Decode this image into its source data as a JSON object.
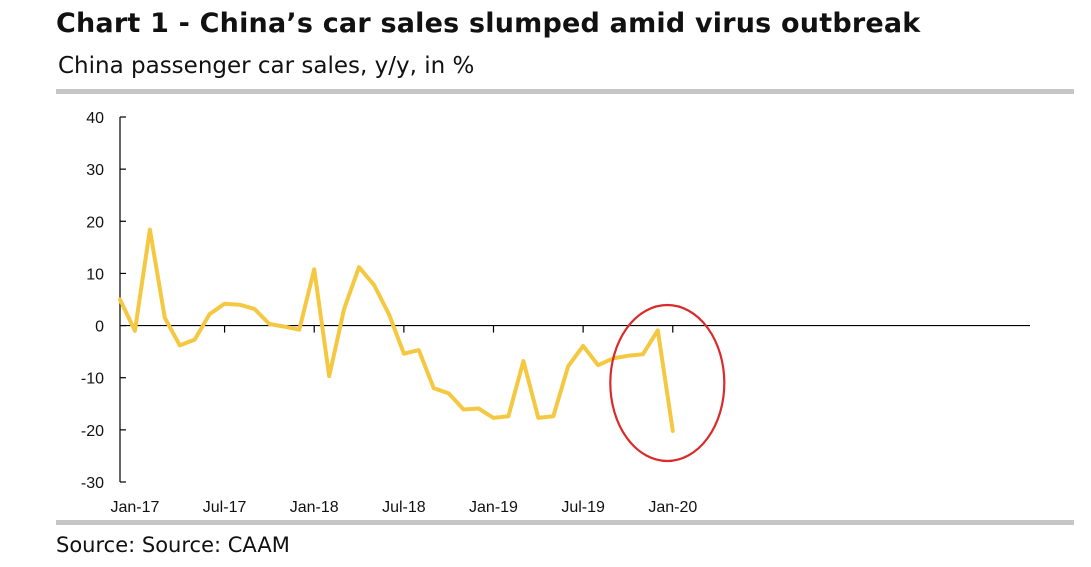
{
  "header": {
    "title": "Chart 1 - China’s car sales slumped amid virus outbreak",
    "subtitle": "China passenger car sales, y/y, in %"
  },
  "footer": {
    "source": "Source: Source: CAAM"
  },
  "colors": {
    "line": "#F5C842",
    "highlight_circle": "#D92B2B",
    "axis": "#000000",
    "rule": "#C6C6C6"
  },
  "chart_data": {
    "type": "line",
    "ylim": [
      -30,
      40
    ],
    "yticks": [
      "40",
      "30",
      "20",
      "10",
      "0",
      "-10",
      "-20",
      "-30"
    ],
    "ytick_values": [
      40,
      30,
      20,
      10,
      0,
      -10,
      -20,
      -30
    ],
    "xtick_labels": [
      "Jan-17",
      "Jul-17",
      "Jan-18",
      "Jul-18",
      "Jan-19",
      "Jul-19",
      "Jan-20"
    ],
    "xtick_months": [
      "2017-01",
      "2017-07",
      "2018-01",
      "2018-07",
      "2019-01",
      "2019-07",
      "2020-01"
    ],
    "grid": false,
    "legend": "none",
    "x": [
      "2016-12",
      "2017-01",
      "2017-02",
      "2017-03",
      "2017-04",
      "2017-05",
      "2017-06",
      "2017-07",
      "2017-08",
      "2017-09",
      "2017-10",
      "2017-11",
      "2017-12",
      "2018-01",
      "2018-02",
      "2018-03",
      "2018-04",
      "2018-05",
      "2018-06",
      "2018-07",
      "2018-08",
      "2018-09",
      "2018-10",
      "2018-11",
      "2018-12",
      "2019-01",
      "2019-02",
      "2019-03",
      "2019-04",
      "2019-05",
      "2019-06",
      "2019-07",
      "2019-08",
      "2019-09",
      "2019-10",
      "2019-11",
      "2019-12",
      "2020-01"
    ],
    "series": [
      {
        "values": [
          5,
          -1,
          18.4,
          1.5,
          -3.8,
          -2.7,
          2.2,
          4.2,
          4.0,
          3.2,
          0.3,
          -0.2,
          -0.8,
          10.8,
          -9.7,
          3.2,
          11.2,
          7.8,
          2.2,
          -5.4,
          -4.7,
          -12.0,
          -13.0,
          -16.1,
          -15.9,
          -17.7,
          -17.4,
          -6.8,
          -17.7,
          -17.4,
          -7.8,
          -3.9,
          -7.6,
          -6.3,
          -5.8,
          -5.5,
          -0.9,
          -20.2
        ]
      }
    ],
    "annotation": {
      "type": "circle",
      "around": [
        "2019-12",
        "2020-01"
      ]
    }
  }
}
